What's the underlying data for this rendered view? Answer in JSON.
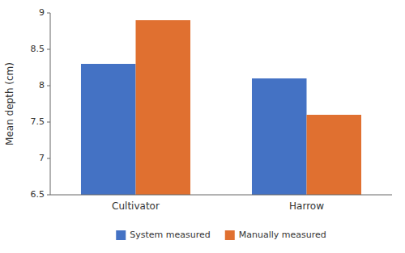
{
  "chart_data": {
    "type": "bar",
    "categories": [
      "Cultivator",
      "Harrow"
    ],
    "series": [
      {
        "name": "System measured",
        "color": "#4472c4",
        "values": [
          8.3,
          8.1
        ]
      },
      {
        "name": "Manually measured",
        "color": "#e07030",
        "values": [
          8.9,
          7.6
        ]
      }
    ],
    "ylabel": "Mean depth (cm)",
    "ylim": [
      6.5,
      9.0
    ],
    "yticks": [
      6.5,
      7,
      7.5,
      8,
      8.5,
      9
    ],
    "grid": false,
    "legend": "bottom"
  }
}
